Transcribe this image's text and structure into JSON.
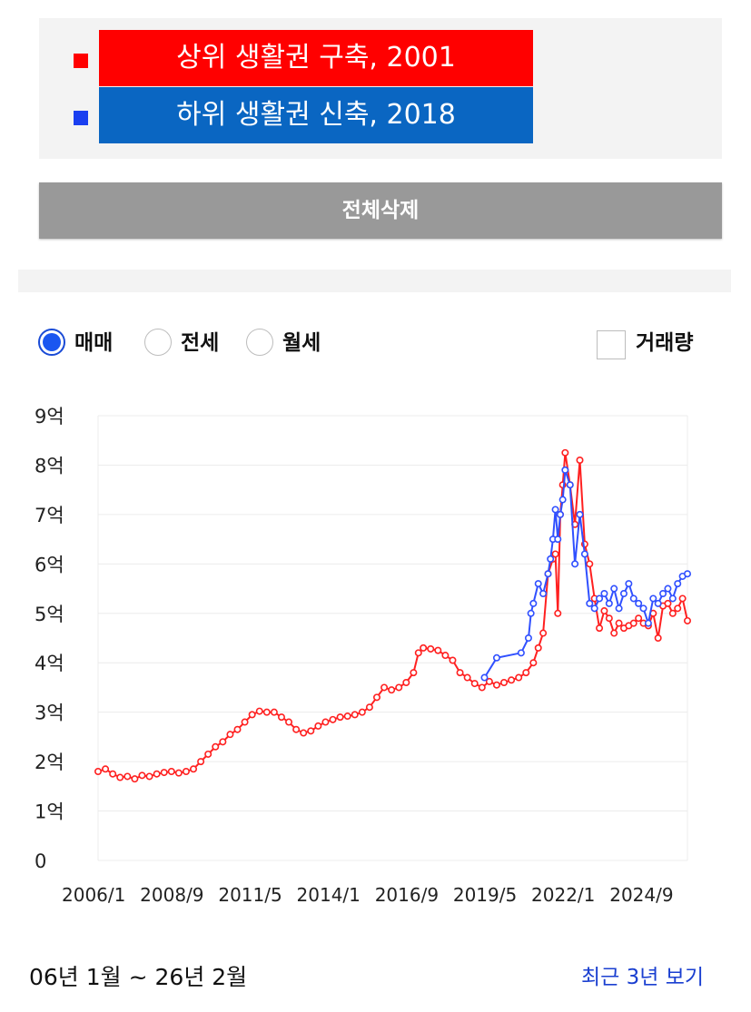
{
  "legend": {
    "items": [
      {
        "label": "상위 생활권 구축, 2001",
        "color": "#ff0000",
        "bg": "#ff0000",
        "marker": "square"
      },
      {
        "label": "하위 생활권 신축, 2018",
        "color": "#1a3ff0",
        "bg": "#0a66c2",
        "marker": "square"
      }
    ]
  },
  "clear_button": {
    "label": "전체삭제"
  },
  "trade_types": {
    "options": [
      {
        "label": "매매",
        "checked": true
      },
      {
        "label": "전세",
        "checked": false
      },
      {
        "label": "월세",
        "checked": false
      }
    ]
  },
  "volume_toggle": {
    "label": "거래량",
    "checked": false
  },
  "chart_data": {
    "type": "line",
    "xlabel": "",
    "ylabel": "",
    "ylim": [
      0,
      900000000
    ],
    "yticks": [
      {
        "value": 0,
        "label": "0"
      },
      {
        "value": 100000000,
        "label": "1억"
      },
      {
        "value": 200000000,
        "label": "2억"
      },
      {
        "value": 300000000,
        "label": "3억"
      },
      {
        "value": 400000000,
        "label": "4억"
      },
      {
        "value": 500000000,
        "label": "5억"
      },
      {
        "value": 600000000,
        "label": "6억"
      },
      {
        "value": 700000000,
        "label": "7억"
      },
      {
        "value": 800000000,
        "label": "8억"
      },
      {
        "value": 900000000,
        "label": "9억"
      }
    ],
    "xlim": [
      "2006-01",
      "2026-02"
    ],
    "xticks": [
      {
        "value": "2006-01",
        "label": "2006/1"
      },
      {
        "value": "2008-09",
        "label": "2008/9"
      },
      {
        "value": "2011-05",
        "label": "2011/5"
      },
      {
        "value": "2014-01",
        "label": "2014/1"
      },
      {
        "value": "2016-09",
        "label": "2016/9"
      },
      {
        "value": "2019-05",
        "label": "2019/5"
      },
      {
        "value": "2022-01",
        "label": "2022/1"
      },
      {
        "value": "2024-09",
        "label": "2024/9"
      }
    ],
    "grid": true,
    "marker": "circle",
    "series": [
      {
        "name": "상위 생활권 구축, 2001",
        "color": "#ff2020",
        "points": [
          [
            "2006-01",
            180000000
          ],
          [
            "2006-04",
            185000000
          ],
          [
            "2006-07",
            175000000
          ],
          [
            "2006-10",
            168000000
          ],
          [
            "2007-01",
            170000000
          ],
          [
            "2007-04",
            165000000
          ],
          [
            "2007-07",
            172000000
          ],
          [
            "2007-10",
            170000000
          ],
          [
            "2008-01",
            175000000
          ],
          [
            "2008-04",
            178000000
          ],
          [
            "2008-07",
            180000000
          ],
          [
            "2008-10",
            177000000
          ],
          [
            "2009-01",
            180000000
          ],
          [
            "2009-04",
            185000000
          ],
          [
            "2009-07",
            200000000
          ],
          [
            "2009-10",
            215000000
          ],
          [
            "2010-01",
            230000000
          ],
          [
            "2010-04",
            240000000
          ],
          [
            "2010-07",
            255000000
          ],
          [
            "2010-10",
            265000000
          ],
          [
            "2011-01",
            280000000
          ],
          [
            "2011-04",
            295000000
          ],
          [
            "2011-07",
            302000000
          ],
          [
            "2011-10",
            300000000
          ],
          [
            "2012-01",
            300000000
          ],
          [
            "2012-04",
            290000000
          ],
          [
            "2012-07",
            280000000
          ],
          [
            "2012-10",
            265000000
          ],
          [
            "2013-01",
            258000000
          ],
          [
            "2013-04",
            262000000
          ],
          [
            "2013-07",
            272000000
          ],
          [
            "2013-10",
            280000000
          ],
          [
            "2014-01",
            285000000
          ],
          [
            "2014-04",
            290000000
          ],
          [
            "2014-07",
            292000000
          ],
          [
            "2014-10",
            295000000
          ],
          [
            "2015-01",
            300000000
          ],
          [
            "2015-04",
            310000000
          ],
          [
            "2015-07",
            330000000
          ],
          [
            "2015-10",
            350000000
          ],
          [
            "2016-01",
            345000000
          ],
          [
            "2016-04",
            350000000
          ],
          [
            "2016-07",
            360000000
          ],
          [
            "2016-10",
            380000000
          ],
          [
            "2016-12",
            420000000
          ],
          [
            "2017-02",
            430000000
          ],
          [
            "2017-05",
            428000000
          ],
          [
            "2017-08",
            425000000
          ],
          [
            "2017-11",
            415000000
          ],
          [
            "2018-02",
            405000000
          ],
          [
            "2018-05",
            380000000
          ],
          [
            "2018-08",
            370000000
          ],
          [
            "2018-11",
            358000000
          ],
          [
            "2019-02",
            350000000
          ],
          [
            "2019-05",
            362000000
          ],
          [
            "2019-08",
            355000000
          ],
          [
            "2019-11",
            360000000
          ],
          [
            "2020-02",
            365000000
          ],
          [
            "2020-05",
            370000000
          ],
          [
            "2020-08",
            380000000
          ],
          [
            "2020-11",
            400000000
          ],
          [
            "2021-01",
            430000000
          ],
          [
            "2021-03",
            460000000
          ],
          [
            "2021-05",
            580000000
          ],
          [
            "2021-07",
            610000000
          ],
          [
            "2021-08",
            620000000
          ],
          [
            "2021-09",
            500000000
          ],
          [
            "2021-10",
            700000000
          ],
          [
            "2021-11",
            760000000
          ],
          [
            "2021-12",
            825000000
          ],
          [
            "2022-02",
            760000000
          ],
          [
            "2022-04",
            680000000
          ],
          [
            "2022-06",
            810000000
          ],
          [
            "2022-08",
            640000000
          ],
          [
            "2022-10",
            600000000
          ],
          [
            "2022-12",
            530000000
          ],
          [
            "2023-02",
            470000000
          ],
          [
            "2023-04",
            505000000
          ],
          [
            "2023-06",
            490000000
          ],
          [
            "2023-08",
            460000000
          ],
          [
            "2023-10",
            480000000
          ],
          [
            "2023-12",
            470000000
          ],
          [
            "2024-02",
            475000000
          ],
          [
            "2024-04",
            480000000
          ],
          [
            "2024-06",
            490000000
          ],
          [
            "2024-08",
            480000000
          ],
          [
            "2024-10",
            475000000
          ],
          [
            "2024-12",
            500000000
          ],
          [
            "2025-02",
            450000000
          ],
          [
            "2025-04",
            515000000
          ],
          [
            "2025-06",
            520000000
          ],
          [
            "2025-08",
            500000000
          ],
          [
            "2025-10",
            510000000
          ],
          [
            "2025-12",
            530000000
          ],
          [
            "2026-02",
            485000000
          ]
        ]
      },
      {
        "name": "하위 생활권 신축, 2018",
        "color": "#3050ff",
        "points": [
          [
            "2019-03",
            370000000
          ],
          [
            "2019-08",
            410000000
          ],
          [
            "2020-06",
            420000000
          ],
          [
            "2020-09",
            450000000
          ],
          [
            "2020-10",
            500000000
          ],
          [
            "2020-11",
            520000000
          ],
          [
            "2021-01",
            560000000
          ],
          [
            "2021-03",
            540000000
          ],
          [
            "2021-05",
            580000000
          ],
          [
            "2021-06",
            610000000
          ],
          [
            "2021-07",
            650000000
          ],
          [
            "2021-08",
            710000000
          ],
          [
            "2021-09",
            650000000
          ],
          [
            "2021-10",
            700000000
          ],
          [
            "2021-11",
            730000000
          ],
          [
            "2021-12",
            790000000
          ],
          [
            "2022-02",
            760000000
          ],
          [
            "2022-04",
            600000000
          ],
          [
            "2022-06",
            700000000
          ],
          [
            "2022-08",
            620000000
          ],
          [
            "2022-10",
            520000000
          ],
          [
            "2022-12",
            510000000
          ],
          [
            "2023-02",
            530000000
          ],
          [
            "2023-04",
            540000000
          ],
          [
            "2023-06",
            520000000
          ],
          [
            "2023-08",
            550000000
          ],
          [
            "2023-10",
            510000000
          ],
          [
            "2023-12",
            540000000
          ],
          [
            "2024-02",
            560000000
          ],
          [
            "2024-04",
            530000000
          ],
          [
            "2024-06",
            520000000
          ],
          [
            "2024-08",
            510000000
          ],
          [
            "2024-10",
            480000000
          ],
          [
            "2024-12",
            530000000
          ],
          [
            "2025-02",
            520000000
          ],
          [
            "2025-04",
            540000000
          ],
          [
            "2025-06",
            550000000
          ],
          [
            "2025-08",
            530000000
          ],
          [
            "2025-10",
            560000000
          ],
          [
            "2025-12",
            575000000
          ],
          [
            "2026-02",
            580000000
          ]
        ]
      }
    ]
  },
  "footer": {
    "period": "06년 1월 ~ 26년 2월",
    "recent_link": "최근 3년 보기"
  }
}
